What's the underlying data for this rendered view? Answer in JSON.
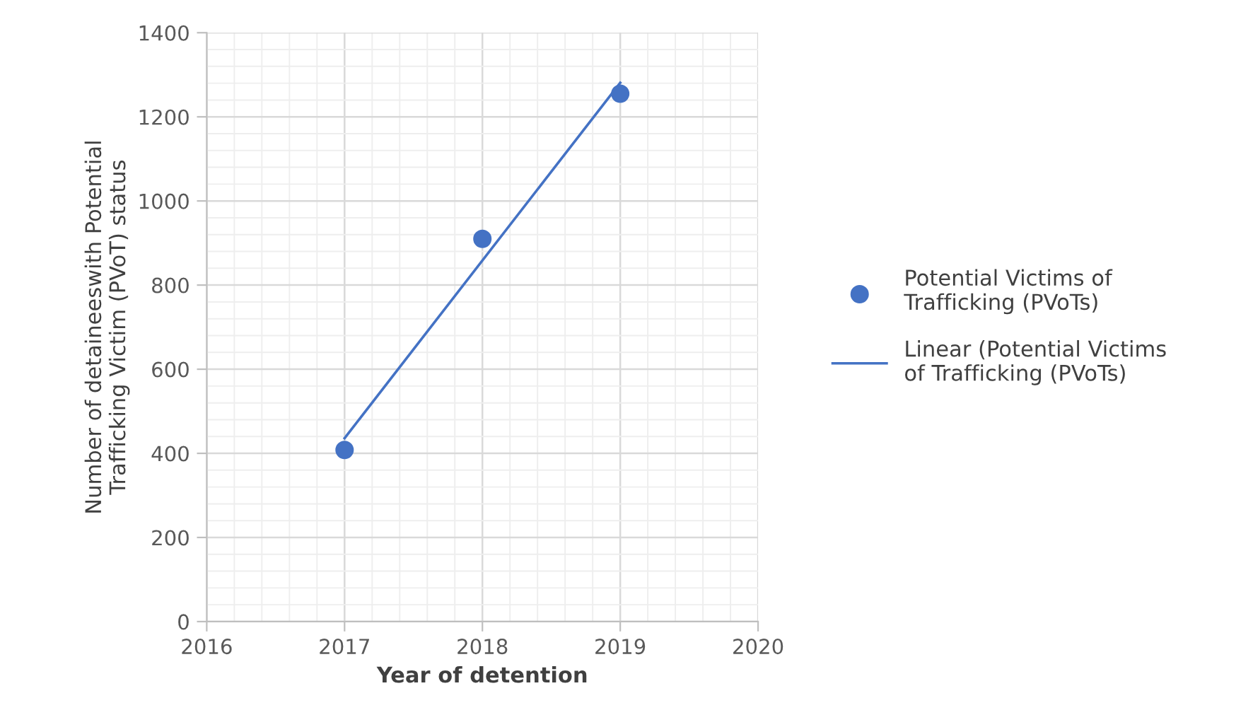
{
  "chart_data": {
    "type": "scatter",
    "xlabel": "Year of detention",
    "ylabel": "Number of detaineeswith Potential\nTrafficking Victim (PVoT) status",
    "x": [
      2017,
      2018,
      2019
    ],
    "series": [
      {
        "name": "Potential Victims of\nTrafficking (PVoTs)",
        "color": "#4472c4",
        "marker": "circle",
        "values": [
          408,
          910,
          1255
        ]
      },
      {
        "name": "Linear (Potential Victims\nof Trafficking (PVoTs)",
        "color": "#4472c4",
        "type": "line",
        "line_style": "solid",
        "x": [
          2017,
          2019
        ],
        "values": [
          436,
          1281
        ]
      }
    ],
    "xlim": [
      2016,
      2020
    ],
    "xticks": [
      2016,
      2017,
      2018,
      2019,
      2020
    ],
    "ylim": [
      0,
      1400
    ],
    "yticks": [
      0,
      200,
      400,
      600,
      800,
      1000,
      1200,
      1400
    ],
    "grid": true,
    "legend": "right"
  }
}
